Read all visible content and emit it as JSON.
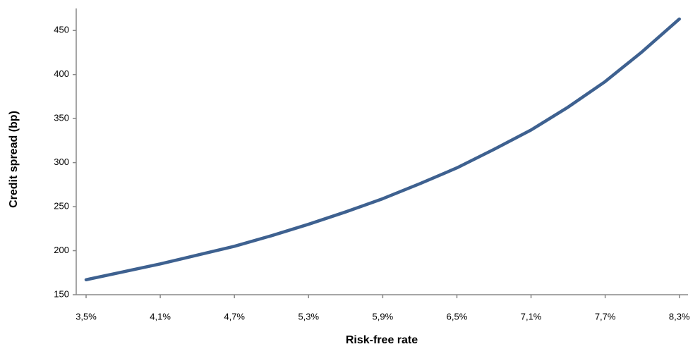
{
  "chart_data": {
    "type": "line",
    "x_label": "Risk-free rate",
    "y_label": "Credit spread (bp)",
    "x": [
      3.5,
      3.8,
      4.1,
      4.4,
      4.7,
      5.0,
      5.3,
      5.6,
      5.9,
      6.2,
      6.5,
      6.8,
      7.1,
      7.4,
      7.7,
      8.0,
      8.3
    ],
    "series": [
      {
        "color": "#3e6190",
        "values": [
          167,
          176,
          185,
          195,
          205,
          217,
          230,
          244,
          259,
          276,
          294,
          315,
          337,
          363,
          392,
          426,
          463
        ]
      }
    ],
    "xlim": [
      3.42,
      8.37
    ],
    "xticks": [
      {
        "value": 3.5,
        "label": "3,5%"
      },
      {
        "value": 4.1,
        "label": "4,1%"
      },
      {
        "value": 4.7,
        "label": "4,7%"
      },
      {
        "value": 5.3,
        "label": "5,3%"
      },
      {
        "value": 5.9,
        "label": "5,9%"
      },
      {
        "value": 6.5,
        "label": "6,5%"
      },
      {
        "value": 7.1,
        "label": "7,1%"
      },
      {
        "value": 7.7,
        "label": "7,7%"
      },
      {
        "value": 8.3,
        "label": "8,3%"
      }
    ],
    "ylim": [
      150,
      475
    ],
    "yticks": [
      150,
      200,
      250,
      300,
      350,
      400,
      450
    ],
    "grid": false
  }
}
